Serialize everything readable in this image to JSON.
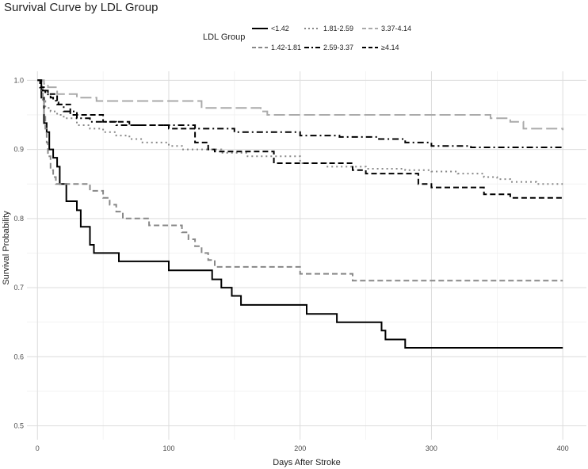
{
  "chart_data": {
    "type": "line",
    "title": "Survival Curve by LDL Group",
    "xlabel": "Days After Stroke",
    "ylabel": "Survival Probability",
    "xlim": [
      -8,
      418
    ],
    "ylim": [
      0.48,
      1.013
    ],
    "x_ticks": [
      0,
      100,
      200,
      300,
      400
    ],
    "y_ticks": [
      0.5,
      0.6,
      0.7,
      0.8,
      0.9,
      1.0
    ],
    "x_tick_labels": [
      "0",
      "100",
      "200",
      "300",
      "400"
    ],
    "y_tick_labels": [
      "0.5",
      "0.6",
      "0.7",
      "0.8",
      "0.9",
      "1.0"
    ],
    "grid": true,
    "legend": {
      "title": "LDL Group",
      "position": "top",
      "entries": [
        "<1.42",
        "1.42-1.81",
        "1.81-2.59",
        "2.59-3.37",
        "3.37-4.14",
        "≥4.14"
      ]
    },
    "series": [
      {
        "name": "<1.42",
        "color": "#000000",
        "style": "solid",
        "x": [
          0,
          3,
          5,
          7,
          9,
          12,
          15,
          17,
          22,
          30,
          33,
          40,
          43,
          62,
          100,
          133,
          140,
          148,
          155,
          170,
          205,
          210,
          228,
          262,
          265,
          270,
          280,
          400
        ],
        "y": [
          1.0,
          0.975,
          0.938,
          0.925,
          0.9,
          0.888,
          0.875,
          0.85,
          0.825,
          0.812,
          0.788,
          0.762,
          0.75,
          0.738,
          0.725,
          0.712,
          0.7,
          0.688,
          0.675,
          0.675,
          0.662,
          0.662,
          0.65,
          0.638,
          0.625,
          0.625,
          0.613,
          0.613
        ]
      },
      {
        "name": "1.42-1.81",
        "color": "#888888",
        "style": "dashed",
        "x": [
          0,
          3,
          4,
          5,
          6,
          7,
          8,
          10,
          12,
          14,
          18,
          40,
          50,
          55,
          60,
          65,
          70,
          85,
          110,
          115,
          120,
          125,
          130,
          135,
          140,
          200,
          210,
          220,
          230,
          240,
          400
        ],
        "y": [
          1.0,
          0.99,
          0.97,
          0.95,
          0.93,
          0.91,
          0.89,
          0.87,
          0.86,
          0.85,
          0.85,
          0.84,
          0.83,
          0.82,
          0.81,
          0.8,
          0.8,
          0.79,
          0.78,
          0.77,
          0.76,
          0.75,
          0.74,
          0.73,
          0.73,
          0.72,
          0.72,
          0.72,
          0.72,
          0.71,
          0.71
        ]
      },
      {
        "name": "1.81-2.59",
        "color": "#888888",
        "style": "dotted",
        "x": [
          0,
          2,
          4,
          6,
          10,
          15,
          20,
          30,
          40,
          50,
          60,
          70,
          80,
          100,
          110,
          120,
          140,
          150,
          160,
          180,
          200,
          220,
          250,
          280,
          300,
          320,
          340,
          350,
          360,
          380,
          400
        ],
        "y": [
          1.0,
          0.985,
          0.97,
          0.96,
          0.955,
          0.95,
          0.945,
          0.935,
          0.93,
          0.925,
          0.92,
          0.915,
          0.91,
          0.905,
          0.9,
          0.9,
          0.895,
          0.895,
          0.89,
          0.89,
          0.88,
          0.875,
          0.872,
          0.87,
          0.868,
          0.865,
          0.86,
          0.857,
          0.853,
          0.85,
          0.85
        ]
      },
      {
        "name": "2.59-3.37",
        "color": "#000000",
        "style": "dashdot",
        "x": [
          0,
          2,
          4,
          6,
          8,
          10,
          12,
          14,
          16,
          20,
          30,
          40,
          60,
          100,
          110,
          120,
          150,
          180,
          200,
          230,
          260,
          280,
          300,
          330,
          400
        ],
        "y": [
          1.0,
          0.99,
          0.985,
          0.98,
          0.978,
          0.975,
          0.972,
          0.968,
          0.965,
          0.955,
          0.945,
          0.94,
          0.935,
          0.935,
          0.935,
          0.93,
          0.925,
          0.925,
          0.92,
          0.918,
          0.915,
          0.91,
          0.905,
          0.903,
          0.903
        ]
      },
      {
        "name": "3.37-4.14",
        "color": "#aaaaaa",
        "style": "longdash",
        "x": [
          0,
          5,
          8,
          15,
          30,
          45,
          60,
          80,
          100,
          125,
          130,
          170,
          175,
          200,
          250,
          300,
          330,
          345,
          360,
          370,
          400
        ],
        "y": [
          1.0,
          0.995,
          0.99,
          0.98,
          0.975,
          0.97,
          0.97,
          0.97,
          0.97,
          0.96,
          0.96,
          0.955,
          0.95,
          0.95,
          0.95,
          0.95,
          0.95,
          0.945,
          0.94,
          0.93,
          0.928
        ]
      },
      {
        "name": "≥4.14",
        "color": "#000000",
        "style": "dashed",
        "x": [
          0,
          3,
          5,
          8,
          15,
          25,
          50,
          70,
          100,
          120,
          130,
          135,
          155,
          180,
          200,
          240,
          250,
          290,
          300,
          340,
          360,
          400
        ],
        "y": [
          1.0,
          0.99,
          0.985,
          0.98,
          0.965,
          0.95,
          0.94,
          0.935,
          0.93,
          0.91,
          0.9,
          0.897,
          0.897,
          0.88,
          0.88,
          0.87,
          0.865,
          0.85,
          0.845,
          0.835,
          0.83,
          0.83
        ]
      }
    ]
  }
}
